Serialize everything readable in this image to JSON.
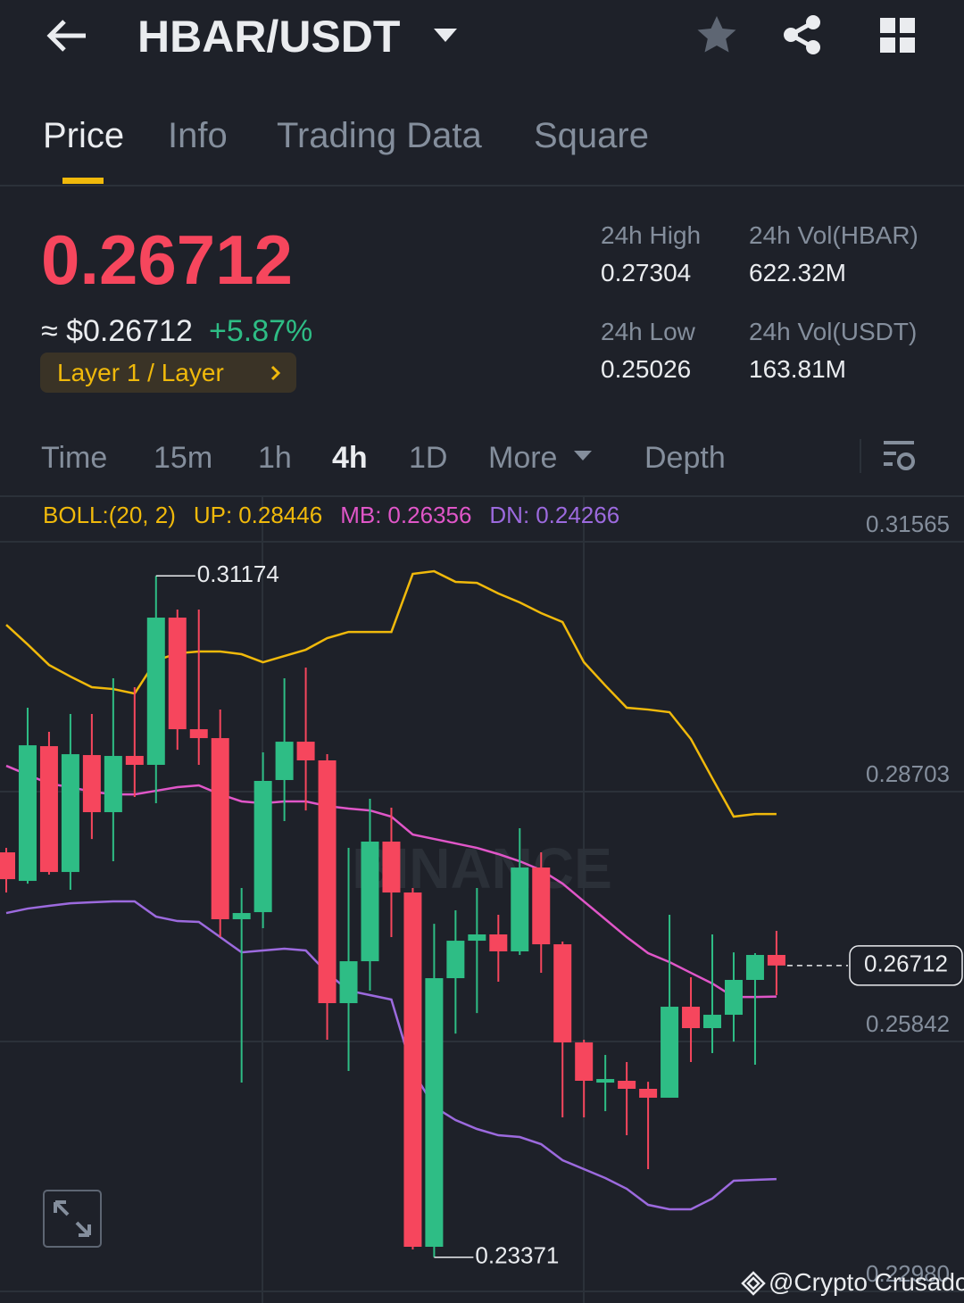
{
  "header": {
    "pair": "HBAR/USDT"
  },
  "tabs": [
    "Price",
    "Info",
    "Trading Data",
    "Square"
  ],
  "ticker": {
    "price": "0.26712",
    "approx": "≈ $0.26712",
    "change": "+5.87%",
    "tag": "Layer 1 / Layer",
    "stats": [
      {
        "label": "24h High",
        "value": "0.27304"
      },
      {
        "label": "24h Vol(HBAR)",
        "value": "622.32M"
      },
      {
        "label": "24h Low",
        "value": "0.25026"
      },
      {
        "label": "24h Vol(USDT)",
        "value": "163.81M"
      }
    ]
  },
  "intervals": [
    "Time",
    "15m",
    "1h",
    "4h",
    "1D",
    "More",
    "Depth"
  ],
  "watermark": "BINANCE",
  "footer": "@Crypto Crusador",
  "chart_data": {
    "type": "candlestick",
    "indicator": "BOLL:(20, 2)",
    "categories": [
      null,
      null,
      null,
      null,
      null,
      null,
      null,
      null,
      null,
      null,
      null,
      null,
      null,
      null,
      null,
      null,
      null,
      null,
      null,
      null,
      null,
      null,
      null,
      null,
      null,
      null,
      null,
      null,
      null,
      null,
      null,
      null,
      null,
      null,
      null,
      null,
      null
    ],
    "up_color": "#2ebd85",
    "down_color": "#f6465d",
    "open": [
      0.28008,
      0.27681,
      0.29224,
      0.27783,
      0.29122,
      0.28468,
      0.29112,
      0.2901,
      0.30696,
      0.29418,
      0.29316,
      0.27242,
      0.27323,
      0.28836,
      0.29275,
      0.29061,
      0.26281,
      0.26761,
      0.28131,
      0.27548,
      0.23491,
      0.26567,
      0.26996,
      0.27068,
      0.26874,
      0.27834,
      0.26955,
      0.25831,
      0.25371,
      0.25392,
      0.253,
      0.25198,
      0.2624,
      0.25995,
      0.26148,
      0.26547,
      0.26833
    ],
    "high": [
      0.28059,
      0.29664,
      0.29388,
      0.29592,
      0.29592,
      0.30001,
      0.29899,
      0.31174,
      0.30788,
      0.30788,
      0.29643,
      0.27599,
      0.29153,
      0.30001,
      0.30124,
      0.29132,
      0.28059,
      0.28621,
      0.28519,
      0.27599,
      0.2719,
      0.27344,
      0.27599,
      0.27293,
      0.28284,
      0.28008,
      0.26986,
      0.25862,
      0.25688,
      0.25606,
      0.25381,
      0.27293,
      0.26577,
      0.27068,
      0.26863,
      0.26853,
      0.27109
    ],
    "low": [
      0.27548,
      0.2765,
      0.27753,
      0.27579,
      0.28161,
      0.27906,
      0.28642,
      0.2857,
      0.29183,
      0.2901,
      0.27037,
      0.25371,
      0.27139,
      0.28366,
      0.28488,
      0.25862,
      0.25504,
      0.26424,
      0.27037,
      0.2346,
      0.23371,
      0.25933,
      0.26168,
      0.26526,
      0.26833,
      0.26628,
      0.24973,
      0.24973,
      0.25044,
      0.24768,
      0.2438,
      0.25198,
      0.25606,
      0.25709,
      0.25841,
      0.25576,
      0.26373
    ],
    "close": [
      0.27701,
      0.29234,
      0.27783,
      0.29132,
      0.28468,
      0.29112,
      0.2901,
      0.30696,
      0.29418,
      0.29316,
      0.27242,
      0.27313,
      0.28826,
      0.29275,
      0.29061,
      0.26281,
      0.26761,
      0.28131,
      0.27548,
      0.23491,
      0.26567,
      0.26996,
      0.27068,
      0.26874,
      0.27834,
      0.26955,
      0.25831,
      0.25392,
      0.25412,
      0.253,
      0.25198,
      0.2624,
      0.25995,
      0.26148,
      0.26547,
      0.26833,
      0.26712
    ],
    "series": [
      {
        "name": "UP:",
        "color": "#f0b90b",
        "values": [
          0.30614,
          0.30389,
          0.30154,
          0.30021,
          0.29899,
          0.29878,
          0.29827,
          0.30205,
          0.30287,
          0.30308,
          0.30308,
          0.30277,
          0.30185,
          0.30256,
          0.30328,
          0.30461,
          0.30532,
          0.30532,
          0.30532,
          0.31197,
          0.31227,
          0.31105,
          0.31094,
          0.30972,
          0.3087,
          0.30747,
          0.30645,
          0.30185,
          0.29919,
          0.29664,
          0.29643,
          0.29613,
          0.29306,
          0.28856,
          0.28417,
          0.28447,
          0.28446
        ]
      },
      {
        "name": "MB:",
        "color": "#e056c8",
        "values": [
          0.28999,
          0.28897,
          0.28795,
          0.28754,
          0.28703,
          0.28672,
          0.28672,
          0.28713,
          0.28754,
          0.28775,
          0.28672,
          0.28591,
          0.2857,
          0.28591,
          0.28591,
          0.28539,
          0.28509,
          0.28488,
          0.28417,
          0.28212,
          0.28161,
          0.2811,
          0.28059,
          0.27988,
          0.27906,
          0.27804,
          0.2765,
          0.27446,
          0.27242,
          0.27037,
          0.26853,
          0.26751,
          0.26628,
          0.26506,
          0.26352,
          0.26352,
          0.26356
        ]
      },
      {
        "name": "DN:",
        "color": "#9c6ade",
        "values": [
          0.27313,
          0.27364,
          0.27395,
          0.27425,
          0.27436,
          0.27446,
          0.27446,
          0.27272,
          0.27221,
          0.27211,
          0.27037,
          0.26863,
          0.26884,
          0.26904,
          0.26884,
          0.26628,
          0.26424,
          0.26373,
          0.26322,
          0.25504,
          0.25095,
          0.24942,
          0.2484,
          0.24768,
          0.24748,
          0.24666,
          0.24482,
          0.2438,
          0.24278,
          0.24155,
          0.23971,
          0.2392,
          0.2392,
          0.24043,
          0.24247,
          0.24257,
          0.24266
        ]
      }
    ],
    "annotations": {
      "high": 0.31174,
      "low": 0.23371,
      "last": 0.26712
    },
    "ylim": [
      0.2298,
      0.31565
    ],
    "yticks": [
      0.31565,
      0.28703,
      0.25842,
      {
        "value": 0.2298,
        "label": "0.22980"
      }
    ],
    "grid": true
  }
}
